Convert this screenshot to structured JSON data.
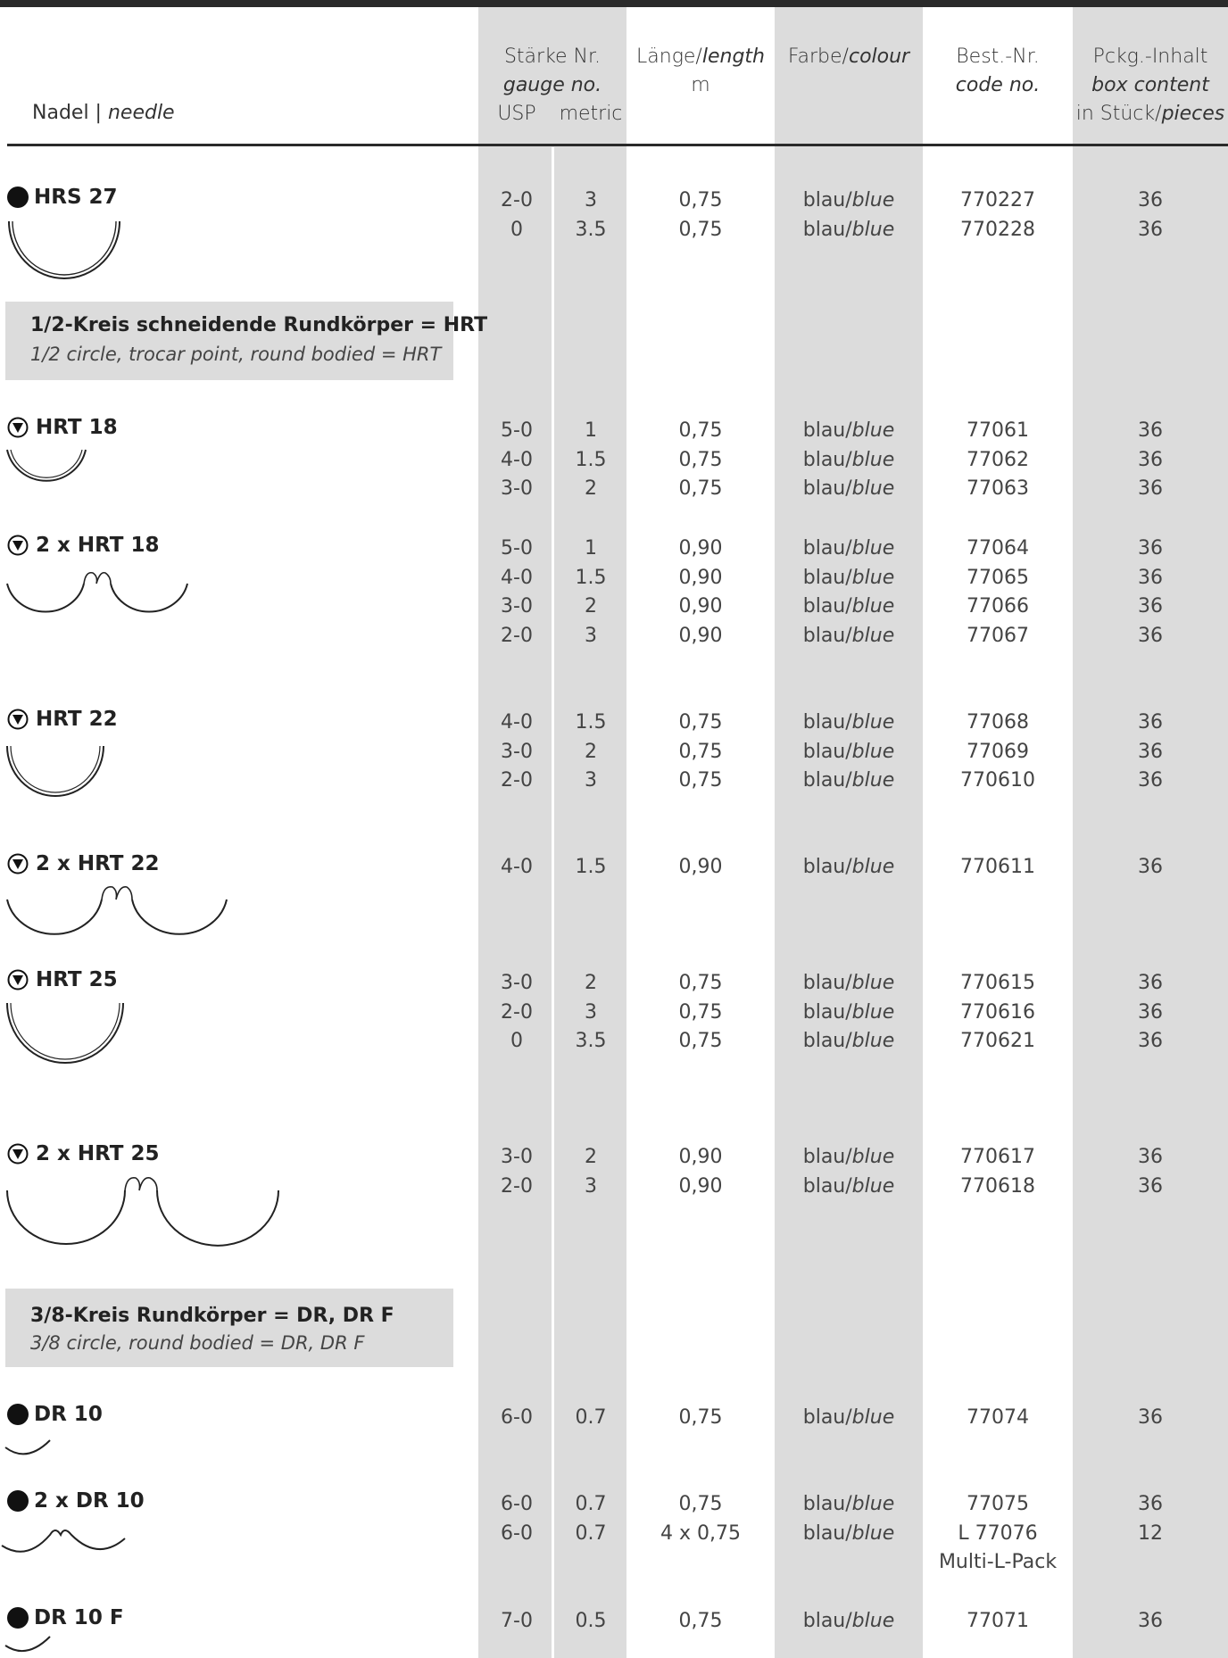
{
  "header": {
    "needle": "Nadel",
    "needle_en": "needle",
    "gauge_de": "Stärke Nr.",
    "gauge_en": "gauge no.",
    "usp": "USP",
    "metric": "metric",
    "length_de": "Länge/",
    "length_en": "length",
    "length_unit": "m",
    "colour_de": "Farbe/",
    "colour_en": "colour",
    "code_de": "Best.-Nr.",
    "code_en": "code no.",
    "box_de": "Pckg.-Inhalt",
    "box_en": "box content",
    "box_pieces_de": "in Stück/",
    "box_pieces_en": "pieces"
  },
  "sections": [
    {
      "title": "1/2-Kreis schneidende Rundkörper = HRT",
      "subtitle": "1/2 circle, trocar point, round bodied = HRT"
    },
    {
      "title": "3/8-Kreis Rundkörper = DR, DR F",
      "subtitle": "3/8 circle, round bodied = DR, DR F"
    }
  ],
  "colour_label": {
    "de": "blau/",
    "en": "blue"
  },
  "needles": [
    {
      "name": "HRS 27",
      "icon": "round-dot-icon",
      "rows": [
        {
          "usp": "2-0",
          "metric": "3",
          "length": "0,75",
          "code": "770227",
          "box": "36"
        },
        {
          "usp": "0",
          "metric": "3.5",
          "length": "0,75",
          "code": "770228",
          "box": "36"
        }
      ]
    },
    {
      "name": "HRT 18",
      "icon": "trocar-triangle-icon",
      "rows": [
        {
          "usp": "5-0",
          "metric": "1",
          "length": "0,75",
          "code": "77061",
          "box": "36"
        },
        {
          "usp": "4-0",
          "metric": "1.5",
          "length": "0,75",
          "code": "77062",
          "box": "36"
        },
        {
          "usp": "3-0",
          "metric": "2",
          "length": "0,75",
          "code": "77063",
          "box": "36"
        }
      ]
    },
    {
      "name": "2 x HRT 18",
      "icon": "trocar-triangle-icon",
      "rows": [
        {
          "usp": "5-0",
          "metric": "1",
          "length": "0,90",
          "code": "77064",
          "box": "36"
        },
        {
          "usp": "4-0",
          "metric": "1.5",
          "length": "0,90",
          "code": "77065",
          "box": "36"
        },
        {
          "usp": "3-0",
          "metric": "2",
          "length": "0,90",
          "code": "77066",
          "box": "36"
        },
        {
          "usp": "2-0",
          "metric": "3",
          "length": "0,90",
          "code": "77067",
          "box": "36"
        }
      ]
    },
    {
      "name": "HRT 22",
      "icon": "trocar-triangle-icon",
      "rows": [
        {
          "usp": "4-0",
          "metric": "1.5",
          "length": "0,75",
          "code": "77068",
          "box": "36"
        },
        {
          "usp": "3-0",
          "metric": "2",
          "length": "0,75",
          "code": "77069",
          "box": "36"
        },
        {
          "usp": "2-0",
          "metric": "3",
          "length": "0,75",
          "code": "770610",
          "box": "36"
        }
      ]
    },
    {
      "name": "2 x HRT 22",
      "icon": "trocar-triangle-icon",
      "rows": [
        {
          "usp": "4-0",
          "metric": "1.5",
          "length": "0,90",
          "code": "770611",
          "box": "36"
        }
      ]
    },
    {
      "name": "HRT 25",
      "icon": "trocar-triangle-icon",
      "rows": [
        {
          "usp": "3-0",
          "metric": "2",
          "length": "0,75",
          "code": "770615",
          "box": "36"
        },
        {
          "usp": "2-0",
          "metric": "3",
          "length": "0,75",
          "code": "770616",
          "box": "36"
        },
        {
          "usp": "0",
          "metric": "3.5",
          "length": "0,75",
          "code": "770621",
          "box": "36"
        }
      ]
    },
    {
      "name": "2 x HRT 25",
      "icon": "trocar-triangle-icon",
      "rows": [
        {
          "usp": "3-0",
          "metric": "2",
          "length": "0,90",
          "code": "770617",
          "box": "36"
        },
        {
          "usp": "2-0",
          "metric": "3",
          "length": "0,90",
          "code": "770618",
          "box": "36"
        }
      ]
    },
    {
      "name": "DR 10",
      "icon": "round-dot-icon",
      "rows": [
        {
          "usp": "6-0",
          "metric": "0.7",
          "length": "0,75",
          "code": "77074",
          "box": "36"
        }
      ]
    },
    {
      "name": "2 x DR 10",
      "icon": "round-dot-icon",
      "rows": [
        {
          "usp": "6-0",
          "metric": "0.7",
          "length": "0,75",
          "code": "77075",
          "box": "36"
        },
        {
          "usp": "6-0",
          "metric": "0.7",
          "length": "4 x 0,75",
          "code": "L 77076",
          "code_note": "Multi-L-Pack",
          "box": "12"
        }
      ]
    },
    {
      "name": "DR 10 F",
      "icon": "round-dot-icon",
      "rows": [
        {
          "usp": "7-0",
          "metric": "0.5",
          "length": "0,75",
          "code": "77071",
          "box": "36"
        }
      ]
    }
  ]
}
